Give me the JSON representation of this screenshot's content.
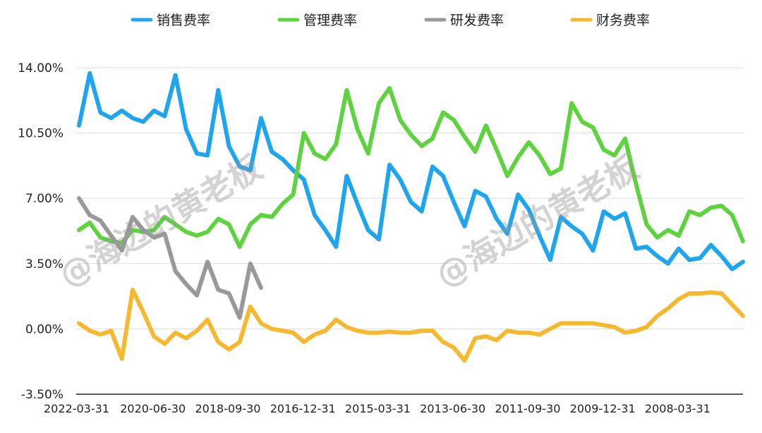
{
  "chart_data": {
    "type": "line",
    "title": "",
    "xlabel": "",
    "ylabel": "",
    "ylim": [
      -3.5,
      14.0
    ],
    "y_ticks": [
      "14.00%",
      "10.50%",
      "7.00%",
      "3.50%",
      "0.00%",
      "-3.50%"
    ],
    "y_tick_values": [
      14.0,
      10.5,
      7.0,
      3.5,
      0.0,
      -3.5
    ],
    "x_tick_labels": [
      "2022-03-31",
      "2020-06-30",
      "2018-09-30",
      "2016-12-31",
      "2015-03-31",
      "2013-06-30",
      "2011-09-30",
      "2009-12-31",
      "2008-03-31"
    ],
    "x_tick_index": [
      0,
      7,
      14,
      21,
      28,
      35,
      42,
      49,
      56
    ],
    "n_points": 63,
    "legend_position": "top",
    "watermark": "@海边的黄老板",
    "series": [
      {
        "name": "销售费率",
        "color": "#1fa5ee",
        "values": [
          10.9,
          13.7,
          11.6,
          11.3,
          11.7,
          11.3,
          11.1,
          11.7,
          11.4,
          13.6,
          10.7,
          9.4,
          9.3,
          12.8,
          9.8,
          8.7,
          8.5,
          11.3,
          9.5,
          9.1,
          8.5,
          8.0,
          6.1,
          5.3,
          4.4,
          8.2,
          6.7,
          5.3,
          4.8,
          8.8,
          8.0,
          6.8,
          6.3,
          8.7,
          8.2,
          6.8,
          5.5,
          7.4,
          7.1,
          5.9,
          5.1,
          7.2,
          6.4,
          5.0,
          3.7,
          6.0,
          5.5,
          5.1,
          4.2,
          6.3,
          5.9,
          6.2,
          4.3,
          4.4,
          3.9,
          3.5,
          4.3,
          3.7,
          3.8,
          4.5,
          3.9,
          3.2,
          3.6
        ]
      },
      {
        "name": "管理费率",
        "color": "#5fd33f",
        "values": [
          5.3,
          5.7,
          4.9,
          4.7,
          4.6,
          5.3,
          5.2,
          5.3,
          6.0,
          5.6,
          5.2,
          5.0,
          5.2,
          5.9,
          5.6,
          4.4,
          5.6,
          6.1,
          6.0,
          6.7,
          7.2,
          10.5,
          9.4,
          9.1,
          9.9,
          12.8,
          10.7,
          9.4,
          12.1,
          12.9,
          11.2,
          10.4,
          9.8,
          10.2,
          11.6,
          11.2,
          10.3,
          9.5,
          10.9,
          9.6,
          8.2,
          9.2,
          10.0,
          9.3,
          8.3,
          8.6,
          12.1,
          11.1,
          10.8,
          9.6,
          9.3,
          10.2,
          7.8,
          5.6,
          4.9,
          5.3,
          5.0,
          6.3,
          6.1,
          6.5,
          6.6,
          6.1,
          4.7
        ]
      },
      {
        "name": "研发费率",
        "color": "#999999",
        "values": [
          7.0,
          6.1,
          5.8,
          5.0,
          4.2,
          6.0,
          5.3,
          4.9,
          5.1,
          3.1,
          2.4,
          1.8,
          3.6,
          2.1,
          1.9,
          0.6,
          3.5,
          2.2
        ]
      },
      {
        "name": "财务费率",
        "color": "#f5b82e",
        "values": [
          0.3,
          -0.1,
          -0.3,
          -0.1,
          -1.6,
          2.1,
          0.9,
          -0.4,
          -0.8,
          -0.2,
          -0.5,
          -0.1,
          0.5,
          -0.7,
          -1.1,
          -0.7,
          1.2,
          0.3,
          0.0,
          -0.1,
          -0.2,
          -0.7,
          -0.3,
          -0.1,
          0.5,
          0.1,
          -0.1,
          -0.2,
          -0.2,
          -0.15,
          -0.2,
          -0.2,
          -0.1,
          -0.1,
          -0.7,
          -1.0,
          -1.7,
          -0.5,
          -0.4,
          -0.6,
          -0.1,
          -0.2,
          -0.2,
          -0.3,
          0.0,
          0.3,
          0.3,
          0.3,
          0.3,
          0.2,
          0.1,
          -0.2,
          -0.1,
          0.1,
          0.7,
          1.1,
          1.6,
          1.9,
          1.9,
          1.95,
          1.9,
          1.3,
          0.7
        ]
      }
    ]
  }
}
